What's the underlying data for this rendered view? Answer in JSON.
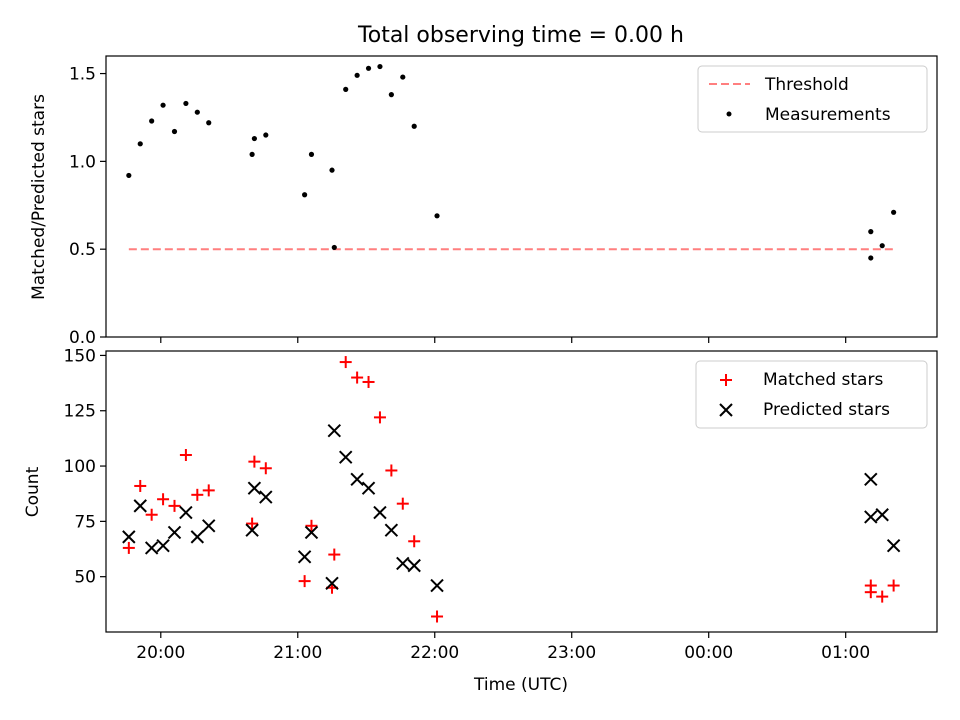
{
  "figure_title": "Total observing time = 0.00 h",
  "chart_data": [
    {
      "type": "scatter",
      "ylabel": "Matched/Predicted stars",
      "xlim": [
        "19:36",
        "25:40"
      ],
      "ylim": [
        0,
        1.6
      ],
      "yticks": [
        0.0,
        0.5,
        1.0,
        1.5
      ],
      "ytick_labels": [
        "0.0",
        "0.5",
        "1.0",
        "1.5"
      ],
      "legend_position": "upper right",
      "series": [
        {
          "name": "Threshold",
          "kind": "dashed-line",
          "color": "#ff7f7f",
          "x": [
            "19:46",
            "25:21"
          ],
          "y": [
            0.5,
            0.5
          ]
        },
        {
          "name": "Measurements",
          "kind": "points",
          "color": "#000000",
          "points": [
            {
              "x": "19:46",
              "y": 0.92
            },
            {
              "x": "19:51",
              "y": 1.1
            },
            {
              "x": "19:56",
              "y": 1.23
            },
            {
              "x": "20:01",
              "y": 1.32
            },
            {
              "x": "20:06",
              "y": 1.17
            },
            {
              "x": "20:11",
              "y": 1.33
            },
            {
              "x": "20:16",
              "y": 1.28
            },
            {
              "x": "20:21",
              "y": 1.22
            },
            {
              "x": "20:40",
              "y": 1.04
            },
            {
              "x": "20:41",
              "y": 1.13
            },
            {
              "x": "20:46",
              "y": 1.15
            },
            {
              "x": "21:03",
              "y": 0.81
            },
            {
              "x": "21:06",
              "y": 1.04
            },
            {
              "x": "21:15",
              "y": 0.95
            },
            {
              "x": "21:16",
              "y": 0.51
            },
            {
              "x": "21:21",
              "y": 1.41
            },
            {
              "x": "21:26",
              "y": 1.49
            },
            {
              "x": "21:31",
              "y": 1.53
            },
            {
              "x": "21:36",
              "y": 1.54
            },
            {
              "x": "21:41",
              "y": 1.38
            },
            {
              "x": "21:46",
              "y": 1.48
            },
            {
              "x": "21:51",
              "y": 1.2
            },
            {
              "x": "22:01",
              "y": 0.69
            },
            {
              "x": "25:11",
              "y": 0.6
            },
            {
              "x": "25:11",
              "y": 0.45
            },
            {
              "x": "25:16",
              "y": 0.52
            },
            {
              "x": "25:21",
              "y": 0.71
            }
          ]
        }
      ]
    },
    {
      "type": "scatter",
      "ylabel": "Count",
      "xlabel": "Time (UTC)",
      "xlim": [
        "19:36",
        "25:40"
      ],
      "ylim": [
        25,
        152
      ],
      "yticks": [
        50,
        75,
        100,
        125,
        150
      ],
      "ytick_labels": [
        "50",
        "75",
        "100",
        "125",
        "150"
      ],
      "xticks": [
        "20:00",
        "21:00",
        "22:00",
        "23:00",
        "24:00",
        "25:00"
      ],
      "xtick_labels": [
        "20:00",
        "21:00",
        "22:00",
        "23:00",
        "00:00",
        "01:00"
      ],
      "legend_position": "upper right",
      "series": [
        {
          "name": "Matched stars",
          "kind": "plus-markers",
          "color": "#ff0000",
          "points": [
            {
              "x": "19:46",
              "y": 63
            },
            {
              "x": "19:51",
              "y": 91
            },
            {
              "x": "19:56",
              "y": 78
            },
            {
              "x": "20:01",
              "y": 85
            },
            {
              "x": "20:06",
              "y": 82
            },
            {
              "x": "20:11",
              "y": 105
            },
            {
              "x": "20:16",
              "y": 87
            },
            {
              "x": "20:21",
              "y": 89
            },
            {
              "x": "20:40",
              "y": 74
            },
            {
              "x": "20:41",
              "y": 102
            },
            {
              "x": "20:46",
              "y": 99
            },
            {
              "x": "21:03",
              "y": 48
            },
            {
              "x": "21:06",
              "y": 73
            },
            {
              "x": "21:15",
              "y": 45
            },
            {
              "x": "21:16",
              "y": 60
            },
            {
              "x": "21:21",
              "y": 147
            },
            {
              "x": "21:26",
              "y": 140
            },
            {
              "x": "21:31",
              "y": 138
            },
            {
              "x": "21:36",
              "y": 122
            },
            {
              "x": "21:41",
              "y": 98
            },
            {
              "x": "21:46",
              "y": 83
            },
            {
              "x": "21:51",
              "y": 66
            },
            {
              "x": "22:01",
              "y": 32
            },
            {
              "x": "25:11",
              "y": 46
            },
            {
              "x": "25:11",
              "y": 43
            },
            {
              "x": "25:16",
              "y": 41
            },
            {
              "x": "25:21",
              "y": 46
            }
          ]
        },
        {
          "name": "Predicted stars",
          "kind": "x-markers",
          "color": "#000000",
          "points": [
            {
              "x": "19:46",
              "y": 68
            },
            {
              "x": "19:51",
              "y": 82
            },
            {
              "x": "19:56",
              "y": 63
            },
            {
              "x": "20:01",
              "y": 64
            },
            {
              "x": "20:06",
              "y": 70
            },
            {
              "x": "20:11",
              "y": 79
            },
            {
              "x": "20:16",
              "y": 68
            },
            {
              "x": "20:21",
              "y": 73
            },
            {
              "x": "20:40",
              "y": 71
            },
            {
              "x": "20:41",
              "y": 90
            },
            {
              "x": "20:46",
              "y": 86
            },
            {
              "x": "21:03",
              "y": 59
            },
            {
              "x": "21:06",
              "y": 70
            },
            {
              "x": "21:15",
              "y": 47
            },
            {
              "x": "21:16",
              "y": 116
            },
            {
              "x": "21:21",
              "y": 104
            },
            {
              "x": "21:26",
              "y": 94
            },
            {
              "x": "21:31",
              "y": 90
            },
            {
              "x": "21:36",
              "y": 79
            },
            {
              "x": "21:41",
              "y": 71
            },
            {
              "x": "21:46",
              "y": 56
            },
            {
              "x": "21:51",
              "y": 55
            },
            {
              "x": "22:01",
              "y": 46
            },
            {
              "x": "25:11",
              "y": 94
            },
            {
              "x": "25:11",
              "y": 77
            },
            {
              "x": "25:16",
              "y": 78
            },
            {
              "x": "25:21",
              "y": 64
            }
          ]
        }
      ]
    }
  ]
}
